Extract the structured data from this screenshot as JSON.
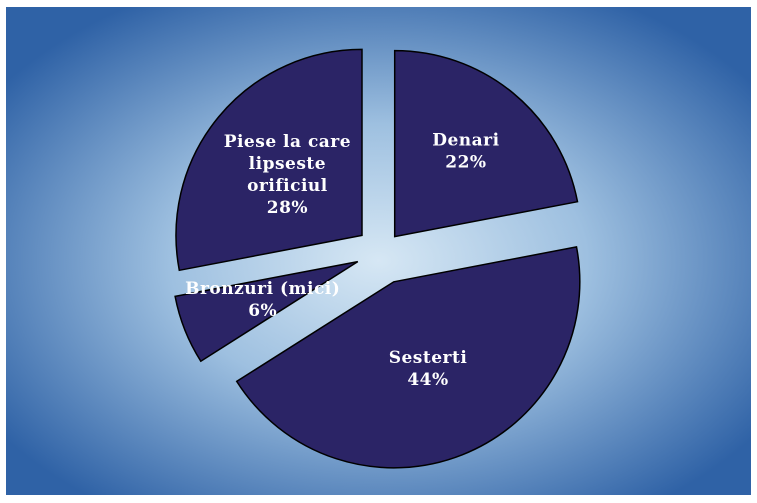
{
  "colors": {
    "slice_fill": "#2b2466",
    "slice_stroke": "#000000",
    "label_color": "#ffffff",
    "background_center": "#d6e7f4",
    "background_edge": "#2f62a6"
  },
  "chart_data": {
    "type": "pie",
    "title": "",
    "exploded": true,
    "start": "top, clockwise",
    "slices": [
      {
        "label_lines": [
          "Denari"
        ],
        "percent_text": "22%",
        "value": 22
      },
      {
        "label_lines": [
          "Sesterti"
        ],
        "percent_text": "44%",
        "value": 44
      },
      {
        "label_lines": [
          "Bronzuri (mici)"
        ],
        "percent_text": "6%",
        "value": 6
      },
      {
        "label_lines": [
          "Piese la care",
          "lipseste",
          "orificiul"
        ],
        "percent_text": "28%",
        "value": 28
      }
    ]
  }
}
